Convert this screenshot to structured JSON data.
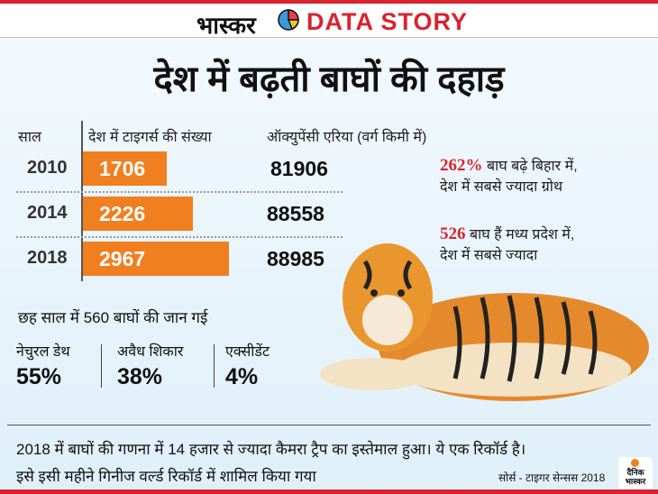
{
  "header": {
    "brand": "भास्कर",
    "tag": "DATA STORY"
  },
  "title": "देश में बढ़ती बाघों की दहाड़",
  "chart_data": {
    "type": "bar",
    "title": "देश में बढ़ती बाघों की दहाड़",
    "headers": {
      "year": "साल",
      "count": "देश में टाइगर्स की संख्या",
      "occupancy": "ऑक्युपेंसी एरिया (वर्ग किमी में)"
    },
    "categories": [
      "2010",
      "2014",
      "2018"
    ],
    "values": [
      1706,
      2226,
      2967
    ],
    "occupancy": [
      "81906",
      "88558",
      "88985"
    ],
    "xlim": [
      0,
      3000
    ]
  },
  "notes": [
    {
      "highlight": "262%",
      "line1": " बाघ बढ़े बिहार में,",
      "line2": "देश में सबसे ज्यादा ग्रोथ"
    },
    {
      "highlight": "526",
      "line1": " बाघ हैं मध्य प्रदेश में,",
      "line2": "देश में सबसे ज्यादा"
    }
  ],
  "deaths": {
    "title": "छह साल में 560 बाघों की जान गई",
    "items": [
      {
        "label": "नेचुरल डेथ",
        "value": "55%"
      },
      {
        "label": "अवैध शिकार",
        "value": "38%"
      },
      {
        "label": "एक्सीडेंट",
        "value": "4%"
      }
    ]
  },
  "footer": {
    "line1": "2018 में बाघों की गणना में 14 हजार से ज्यादा कैमरा ट्रैप का इस्तेमाल हुआ। ये एक रिकॉर्ड है।",
    "line2": "इसे इसी महीने गिनीज वर्ल्ड रिकॉर्ड में शामिल किया गया",
    "source": "सोर्स - टाइगर सेन्सस 2018",
    "logo": "दैनिक भास्कर"
  },
  "colors": {
    "bar": "#f07f1f",
    "accent": "#d9232e"
  }
}
